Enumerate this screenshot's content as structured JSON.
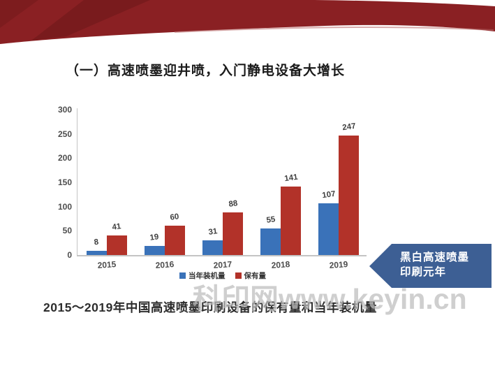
{
  "slide": {
    "title": "（一）高速喷墨迎井喷，入门静电设备大增长",
    "caption": "2015～2019年中国高速喷墨印刷设备的保有量和当年装机量",
    "watermark": "科印网www.keyin.cn"
  },
  "callout": {
    "line1": "黑白高速喷墨",
    "line2": "印刷元年",
    "color": "#3d5f94"
  },
  "theme": {
    "ribbon_red": "#8a2023",
    "ribbon_dark": "#5f1313",
    "ribbon_highlight": "#b86a6a",
    "axis_color": "#c4c4c4",
    "bar_blue": "#3a72b9",
    "bar_red": "#b23229"
  },
  "chart_data": {
    "type": "bar",
    "title": "",
    "xlabel": "",
    "ylabel": "",
    "categories": [
      "2015",
      "2016",
      "2017",
      "2018",
      "2019"
    ],
    "series": [
      {
        "name": "当年装机量",
        "color": "#3a72b9",
        "values": [
          8,
          19,
          31,
          55,
          107
        ]
      },
      {
        "name": "保有量",
        "color": "#b23229",
        "values": [
          41,
          60,
          88,
          141,
          247
        ]
      }
    ],
    "ylim": [
      0,
      300
    ],
    "yticks": [
      0,
      50,
      100,
      150,
      200,
      250,
      300
    ],
    "grid": false,
    "legend_position": "bottom",
    "value_labels": true
  }
}
